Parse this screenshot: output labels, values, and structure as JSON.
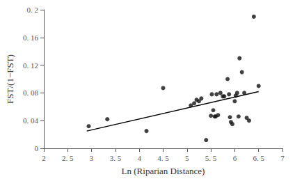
{
  "chart_data": {
    "type": "scatter",
    "xlabel": "Ln (Riparian Distance)",
    "ylabel": "FST/(1−FST)",
    "series": [
      {
        "type": "scatter",
        "color": "#111111",
        "x": [
          2.94,
          3.33,
          4.15,
          4.5,
          5.08,
          5.15,
          5.2,
          5.25,
          5.3,
          5.4,
          5.5,
          5.52,
          5.55,
          5.58,
          5.6,
          5.62,
          5.65,
          5.7,
          5.75,
          5.78,
          5.85,
          5.88,
          5.9,
          5.92,
          5.95,
          6.0,
          6.02,
          6.05,
          6.08,
          6.1,
          6.15,
          6.2,
          6.25,
          6.3,
          6.4,
          6.5
        ],
        "values": [
          0.032,
          0.042,
          0.025,
          0.087,
          0.062,
          0.065,
          0.07,
          0.068,
          0.072,
          0.012,
          0.047,
          0.078,
          0.055,
          0.046,
          0.046,
          0.078,
          0.048,
          0.08,
          0.075,
          0.075,
          0.1,
          0.078,
          0.045,
          0.038,
          0.035,
          0.068,
          0.076,
          0.08,
          0.046,
          0.13,
          0.11,
          0.08,
          0.044,
          0.04,
          0.19,
          0.09
        ]
      },
      {
        "type": "line",
        "color": "#000000",
        "x": [
          2.9,
          6.5
        ],
        "values": [
          0.025,
          0.082
        ]
      }
    ],
    "xlim": [
      2,
      7
    ],
    "ylim": [
      0,
      0.2
    ],
    "xticks": [
      2,
      {
        "value": 2.5,
        "label": "2. 5"
      },
      3,
      {
        "value": 3.5,
        "label": "3. 5"
      },
      4,
      {
        "value": 4.5,
        "label": "4. 5"
      },
      5,
      {
        "value": 5.5,
        "label": "5. 5"
      },
      6,
      {
        "value": 6.5,
        "label": "6. 5"
      },
      7
    ],
    "yticks": [
      0,
      {
        "value": 0.04,
        "label": "0. 04"
      },
      {
        "value": 0.08,
        "label": "0. 08"
      },
      {
        "value": 0.12,
        "label": "0. 12"
      },
      {
        "value": 0.16,
        "label": "0. 16"
      },
      {
        "value": 0.2,
        "label": "0. 2"
      }
    ],
    "grid": false
  }
}
